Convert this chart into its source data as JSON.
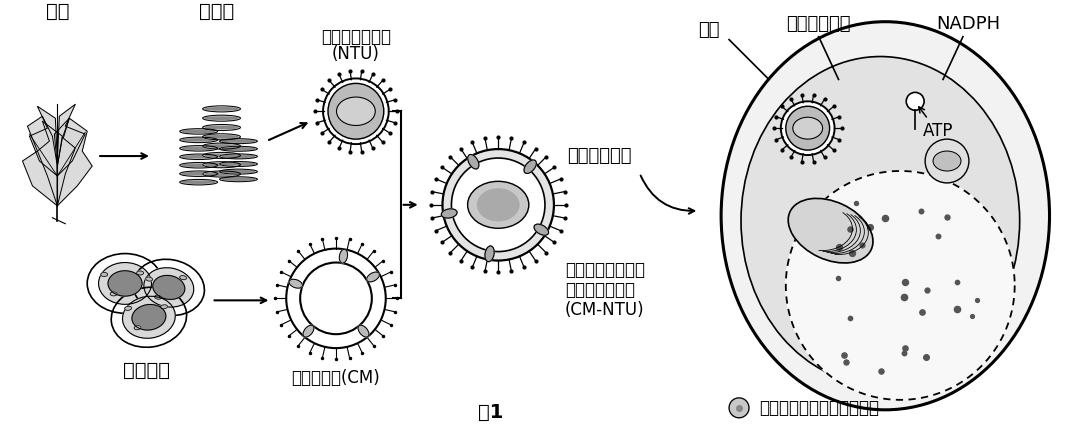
{
  "bg_color": "#ffffff",
  "black": "#000000",
  "dark_gray": "#555555",
  "mid_gray": "#999999",
  "light_gray": "#cccccc",
  "very_light_gray": "#e8e8e8",
  "white": "#ffffff",
  "red_text": "#cc0000",
  "labels": {
    "spinach": "菠菜",
    "thylakoid": "类囊体",
    "ntu_title": "纳米类囊体单位",
    "ntu_sub": "(NTU)",
    "chondrocyte": "软骨细胞",
    "cm": "软骨细胞膜(CM)",
    "cm_ntu_line1": "软骨细胞膜包裹的",
    "cm_ntu_line2": "纳米类囊体单位",
    "cm_ntu_line3": "(CM-NTU)",
    "targeting": "靶向性膜融合",
    "light": "光照",
    "improve": "提高合成产量",
    "nadph": "NADPH",
    "atp": "ATP",
    "inner_cell": "内置植物类囊体的软骨细胞",
    "fig": "图1"
  },
  "figsize": [
    10.8,
    4.25
  ],
  "dpi": 100
}
